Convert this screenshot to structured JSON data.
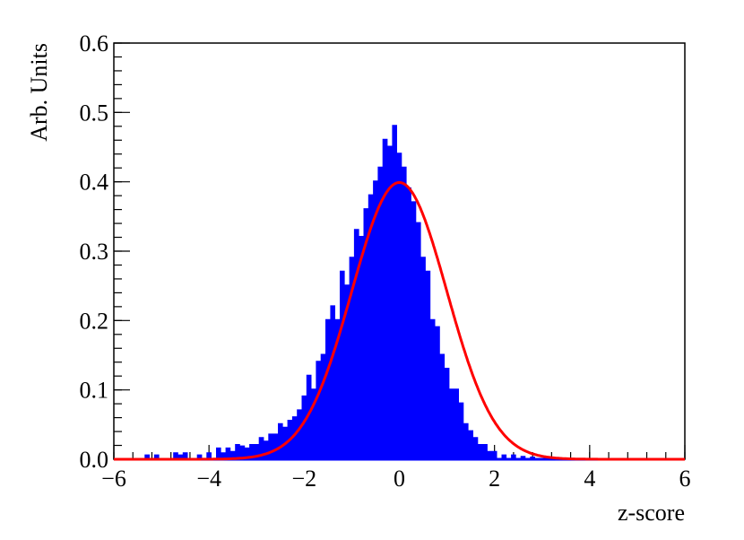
{
  "chart_data": {
    "type": "line",
    "title": "",
    "xlabel": "z-score",
    "ylabel": "Arb. Units",
    "xlim": [
      -6,
      6
    ],
    "ylim": [
      0,
      0.6
    ],
    "x_ticks": [
      "−6",
      "−4",
      "−2",
      "0",
      "2",
      "4",
      "6"
    ],
    "y_ticks": [
      "0.0",
      "0.1",
      "0.2",
      "0.3",
      "0.4",
      "0.5",
      "0.6"
    ],
    "grid": false,
    "legend": "none",
    "colors": {
      "histogram": "#0000ff",
      "fit": "#ff0000",
      "axes": "#000000"
    },
    "series": [
      {
        "kind": "histogram",
        "bin_width": 0.05,
        "bin_centers": [
          -5.3,
          -5.1,
          -4.7,
          -4.6,
          -4.5,
          -4.2,
          -4.0,
          -3.8,
          -3.7,
          -3.6,
          -3.5,
          -3.4,
          -3.3,
          -3.2,
          -3.1,
          -3.0,
          -2.9,
          -2.8,
          -2.7,
          -2.6,
          -2.5,
          -2.4,
          -2.3,
          -2.2,
          -2.1,
          -2.0,
          -1.9,
          -1.8,
          -1.7,
          -1.6,
          -1.5,
          -1.4,
          -1.3,
          -1.2,
          -1.1,
          -1.0,
          -0.9,
          -0.8,
          -0.7,
          -0.6,
          -0.5,
          -0.4,
          -0.3,
          -0.2,
          -0.1,
          0.0,
          0.1,
          0.2,
          0.3,
          0.4,
          0.5,
          0.6,
          0.7,
          0.8,
          0.9,
          1.0,
          1.1,
          1.2,
          1.3,
          1.4,
          1.5,
          1.6,
          1.7,
          1.8,
          1.9,
          2.0,
          2.2,
          2.4,
          2.6,
          2.8
        ],
        "values": [
          0.005,
          0.005,
          0.008,
          0.005,
          0.008,
          0.005,
          0.008,
          0.015,
          0.008,
          0.015,
          0.01,
          0.02,
          0.018,
          0.015,
          0.02,
          0.02,
          0.03,
          0.025,
          0.035,
          0.035,
          0.05,
          0.045,
          0.055,
          0.06,
          0.07,
          0.09,
          0.12,
          0.1,
          0.14,
          0.15,
          0.2,
          0.22,
          0.2,
          0.27,
          0.25,
          0.29,
          0.33,
          0.32,
          0.36,
          0.38,
          0.4,
          0.42,
          0.46,
          0.45,
          0.48,
          0.44,
          0.42,
          0.39,
          0.37,
          0.34,
          0.29,
          0.27,
          0.2,
          0.19,
          0.15,
          0.13,
          0.1,
          0.1,
          0.08,
          0.05,
          0.04,
          0.03,
          0.02,
          0.02,
          0.01,
          0.01,
          0.005,
          0.005,
          0.003,
          0.002
        ]
      },
      {
        "kind": "function",
        "function": "gaussian",
        "mean": 0,
        "sigma": 1,
        "peak": 0.399
      }
    ]
  }
}
